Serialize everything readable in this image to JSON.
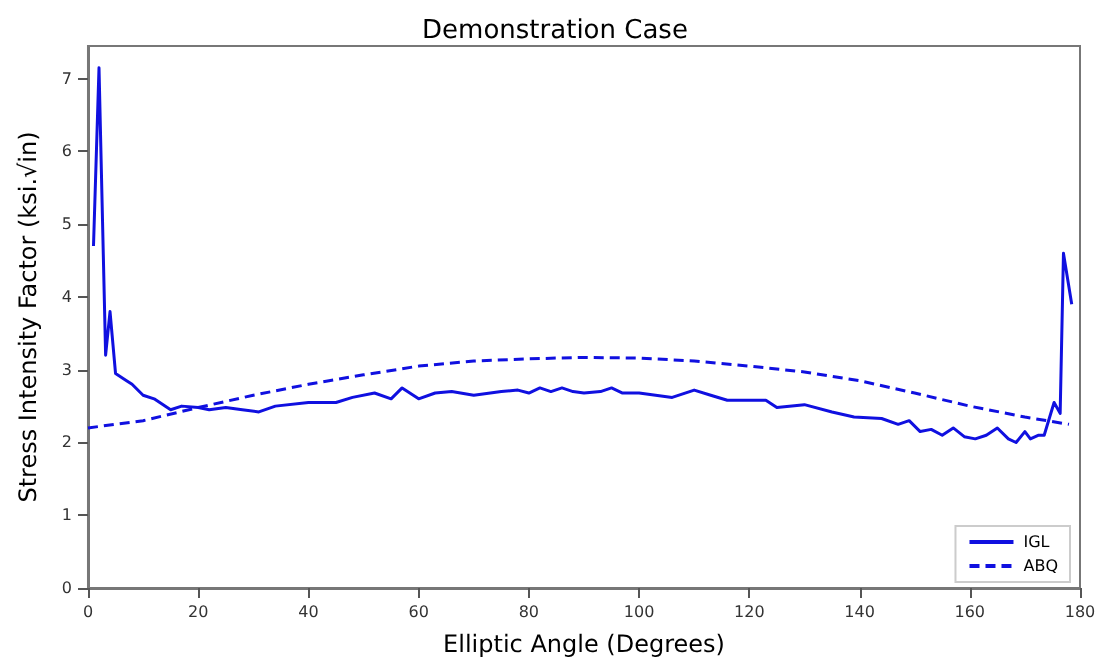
{
  "chart_data": {
    "type": "line",
    "title": "Demonstration Case",
    "xlabel": "Elliptic Angle (Degrees)",
    "ylabel": "Stress Intensity Factor (ksi.√in)",
    "xlim": [
      0,
      180
    ],
    "xticks": [
      0,
      20,
      40,
      60,
      80,
      100,
      120,
      140,
      160,
      180
    ],
    "ylim": [
      0,
      7.45
    ],
    "yticks": [
      0,
      1,
      2,
      3,
      4,
      5,
      6,
      7
    ],
    "grid": false,
    "legend": "bottom right",
    "marker": "none",
    "series": [
      {
        "name": "IGL",
        "color": "#1010e0",
        "line_style": "solid",
        "x": [
          1,
          2,
          3.2,
          4,
          5,
          7,
          8,
          10,
          12,
          15,
          17,
          20,
          22,
          25,
          28,
          31,
          34,
          40,
          45,
          48,
          52,
          55,
          57,
          60,
          63,
          66,
          70,
          75,
          78,
          80,
          82,
          84,
          86,
          88,
          90,
          93,
          95,
          97,
          100,
          103,
          106,
          110,
          113,
          116,
          120,
          123,
          125,
          130,
          135,
          139,
          144,
          147,
          149,
          151,
          153,
          155,
          157,
          159,
          161,
          163,
          165,
          167,
          168.4,
          170,
          171,
          172.5,
          173.5,
          175.3,
          176.4,
          177,
          178.5
        ],
        "values": [
          4.7,
          7.15,
          3.2,
          3.8,
          2.95,
          2.85,
          2.8,
          2.65,
          2.6,
          2.45,
          2.5,
          2.48,
          2.45,
          2.48,
          2.45,
          2.42,
          2.5,
          2.55,
          2.55,
          2.62,
          2.68,
          2.6,
          2.75,
          2.6,
          2.68,
          2.7,
          2.65,
          2.7,
          2.72,
          2.68,
          2.75,
          2.7,
          2.75,
          2.7,
          2.68,
          2.7,
          2.75,
          2.68,
          2.68,
          2.65,
          2.62,
          2.72,
          2.65,
          2.58,
          2.58,
          2.58,
          2.48,
          2.52,
          2.42,
          2.35,
          2.33,
          2.25,
          2.3,
          2.15,
          2.18,
          2.1,
          2.2,
          2.08,
          2.05,
          2.1,
          2.2,
          2.05,
          2.0,
          2.15,
          2.05,
          2.1,
          2.1,
          2.55,
          2.4,
          4.6,
          3.9
        ]
      },
      {
        "name": "ABQ",
        "color": "#1010e0",
        "line_style": "dashed",
        "x": [
          0,
          10,
          20,
          30,
          40,
          50,
          60,
          70,
          80,
          90,
          100,
          110,
          120,
          130,
          140,
          150,
          160,
          170,
          178
        ],
        "values": [
          2.2,
          2.3,
          2.48,
          2.65,
          2.8,
          2.93,
          3.05,
          3.12,
          3.15,
          3.17,
          3.16,
          3.12,
          3.05,
          2.97,
          2.85,
          2.68,
          2.5,
          2.35,
          2.25
        ]
      }
    ]
  }
}
